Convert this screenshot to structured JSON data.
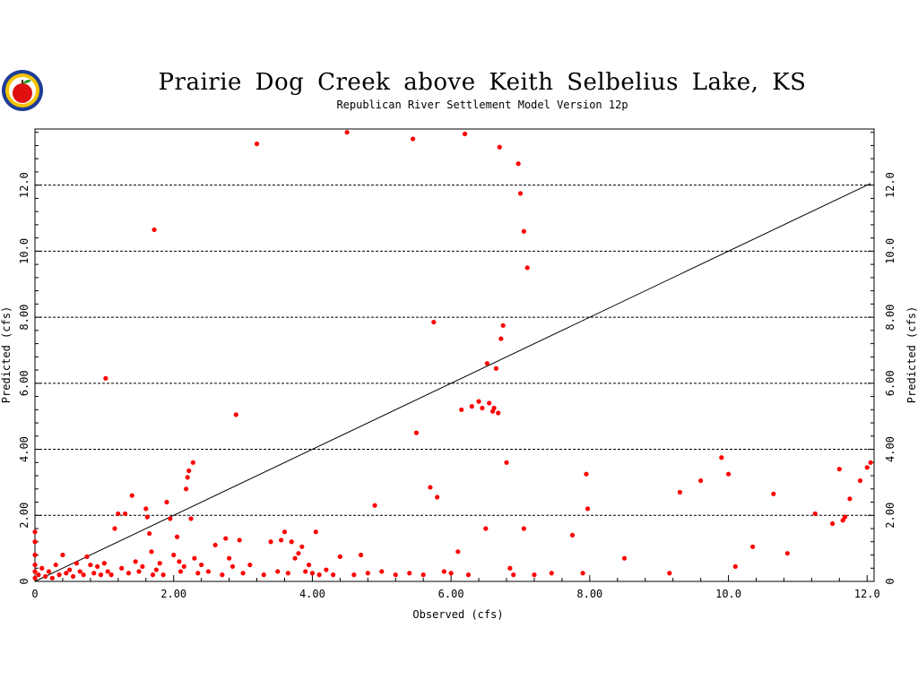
{
  "colors": {
    "points": "#ff0000",
    "line": "#000000",
    "grid": "#000000",
    "background": "#ffffff"
  },
  "logo": {
    "icon": "apple-logo-icon"
  },
  "chart_data": {
    "type": "scatter",
    "title": "Prairie Dog Creek above Keith Selbelius Lake, KS",
    "subtitle": "Republican River Settlement Model Version 12p",
    "xlabel": "Observed (cfs)",
    "ylabel": "Predicted (cfs)",
    "right_ylabel": "Predicted (cfs)",
    "xlim": [
      0,
      12.1
    ],
    "ylim": [
      0,
      13.7
    ],
    "x_ticks": [
      0,
      2,
      4,
      6,
      8,
      10,
      12
    ],
    "x_tick_labels": [
      "0",
      "2.00",
      "4.00",
      "6.00",
      "8.00",
      "10.0",
      "12.0"
    ],
    "y_ticks": [
      0,
      2,
      4,
      6,
      8,
      10,
      12
    ],
    "y_tick_labels": [
      "0",
      "2.00",
      "4.00",
      "6.00",
      "8.00",
      "10.0",
      "12.0"
    ],
    "grid": "horizontal dashed at major y ticks",
    "reference_line": {
      "x": [
        0,
        12.05
      ],
      "y": [
        0,
        12.05
      ]
    },
    "series": [
      {
        "points": [
          [
            0.0,
            1.5
          ],
          [
            0.0,
            1.2
          ],
          [
            0.0,
            0.8
          ],
          [
            0.0,
            0.5
          ],
          [
            0.0,
            0.3
          ],
          [
            0.0,
            0.1
          ],
          [
            0.05,
            0.2
          ],
          [
            0.1,
            0.4
          ],
          [
            0.15,
            0.15
          ],
          [
            0.2,
            0.3
          ],
          [
            0.25,
            0.1
          ],
          [
            0.3,
            0.5
          ],
          [
            0.35,
            0.2
          ],
          [
            0.4,
            0.8
          ],
          [
            0.45,
            0.25
          ],
          [
            0.5,
            0.35
          ],
          [
            0.55,
            0.15
          ],
          [
            0.6,
            0.55
          ],
          [
            0.65,
            0.3
          ],
          [
            0.7,
            0.2
          ],
          [
            0.75,
            0.75
          ],
          [
            0.8,
            0.5
          ],
          [
            0.85,
            0.25
          ],
          [
            0.9,
            0.45
          ],
          [
            0.95,
            0.2
          ],
          [
            1.0,
            0.55
          ],
          [
            1.02,
            6.15
          ],
          [
            1.05,
            0.3
          ],
          [
            1.1,
            0.2
          ],
          [
            1.15,
            1.6
          ],
          [
            1.2,
            2.05
          ],
          [
            1.25,
            0.4
          ],
          [
            1.3,
            2.05
          ],
          [
            1.35,
            0.25
          ],
          [
            1.4,
            2.6
          ],
          [
            1.45,
            0.6
          ],
          [
            1.5,
            0.3
          ],
          [
            1.55,
            0.45
          ],
          [
            1.6,
            2.2
          ],
          [
            1.62,
            1.95
          ],
          [
            1.65,
            1.45
          ],
          [
            1.68,
            0.9
          ],
          [
            1.7,
            0.2
          ],
          [
            1.72,
            10.65
          ],
          [
            1.75,
            0.35
          ],
          [
            1.8,
            0.55
          ],
          [
            1.85,
            0.2
          ],
          [
            1.9,
            2.4
          ],
          [
            1.95,
            1.9
          ],
          [
            2.0,
            0.8
          ],
          [
            2.05,
            1.35
          ],
          [
            2.08,
            0.6
          ],
          [
            2.1,
            0.3
          ],
          [
            2.15,
            0.45
          ],
          [
            2.18,
            2.8
          ],
          [
            2.2,
            3.15
          ],
          [
            2.22,
            3.35
          ],
          [
            2.25,
            1.9
          ],
          [
            2.28,
            3.6
          ],
          [
            2.3,
            0.7
          ],
          [
            2.35,
            0.25
          ],
          [
            2.4,
            0.5
          ],
          [
            2.5,
            0.3
          ],
          [
            2.6,
            1.1
          ],
          [
            2.7,
            0.2
          ],
          [
            2.75,
            1.3
          ],
          [
            2.8,
            0.7
          ],
          [
            2.85,
            0.45
          ],
          [
            2.9,
            5.05
          ],
          [
            2.95,
            1.25
          ],
          [
            3.0,
            0.25
          ],
          [
            3.1,
            0.5
          ],
          [
            3.2,
            13.25
          ],
          [
            3.3,
            0.2
          ],
          [
            3.4,
            1.2
          ],
          [
            3.5,
            0.3
          ],
          [
            3.55,
            1.25
          ],
          [
            3.6,
            1.5
          ],
          [
            3.65,
            0.25
          ],
          [
            3.7,
            1.2
          ],
          [
            3.75,
            0.7
          ],
          [
            3.8,
            0.85
          ],
          [
            3.85,
            1.05
          ],
          [
            3.9,
            0.3
          ],
          [
            3.95,
            0.5
          ],
          [
            4.0,
            0.25
          ],
          [
            4.05,
            1.5
          ],
          [
            4.1,
            0.2
          ],
          [
            4.2,
            0.35
          ],
          [
            4.3,
            0.2
          ],
          [
            4.4,
            0.75
          ],
          [
            4.5,
            13.6
          ],
          [
            4.6,
            0.2
          ],
          [
            4.7,
            0.8
          ],
          [
            4.8,
            0.25
          ],
          [
            4.9,
            2.3
          ],
          [
            5.0,
            0.3
          ],
          [
            5.2,
            0.2
          ],
          [
            5.4,
            0.25
          ],
          [
            5.45,
            13.4
          ],
          [
            5.5,
            4.5
          ],
          [
            5.6,
            0.2
          ],
          [
            5.7,
            2.85
          ],
          [
            5.75,
            7.85
          ],
          [
            5.8,
            2.55
          ],
          [
            5.9,
            0.3
          ],
          [
            6.0,
            0.25
          ],
          [
            6.1,
            0.9
          ],
          [
            6.15,
            5.2
          ],
          [
            6.2,
            13.55
          ],
          [
            6.25,
            0.2
          ],
          [
            6.3,
            5.3
          ],
          [
            6.4,
            5.45
          ],
          [
            6.45,
            5.25
          ],
          [
            6.5,
            1.6
          ],
          [
            6.52,
            6.6
          ],
          [
            6.55,
            5.4
          ],
          [
            6.6,
            5.15
          ],
          [
            6.62,
            5.25
          ],
          [
            6.65,
            6.45
          ],
          [
            6.68,
            5.1
          ],
          [
            6.7,
            13.15
          ],
          [
            6.72,
            7.35
          ],
          [
            6.75,
            7.75
          ],
          [
            6.8,
            3.6
          ],
          [
            6.85,
            0.4
          ],
          [
            6.9,
            0.2
          ],
          [
            6.97,
            12.65
          ],
          [
            7.0,
            11.75
          ],
          [
            7.05,
            10.6
          ],
          [
            7.05,
            1.6
          ],
          [
            7.1,
            9.5
          ],
          [
            7.2,
            0.2
          ],
          [
            7.45,
            0.25
          ],
          [
            7.75,
            1.4
          ],
          [
            7.95,
            3.25
          ],
          [
            7.97,
            2.2
          ],
          [
            7.9,
            0.25
          ],
          [
            8.5,
            0.7
          ],
          [
            9.15,
            0.25
          ],
          [
            9.3,
            2.7
          ],
          [
            9.6,
            3.05
          ],
          [
            9.9,
            3.75
          ],
          [
            10.0,
            3.25
          ],
          [
            10.1,
            0.45
          ],
          [
            10.35,
            1.05
          ],
          [
            10.65,
            2.65
          ],
          [
            10.85,
            0.85
          ],
          [
            11.25,
            2.05
          ],
          [
            11.5,
            1.75
          ],
          [
            11.6,
            3.4
          ],
          [
            11.65,
            1.85
          ],
          [
            11.68,
            1.95
          ],
          [
            11.75,
            2.5
          ],
          [
            11.9,
            3.05
          ],
          [
            12.0,
            3.45
          ],
          [
            12.05,
            3.6
          ]
        ]
      }
    ]
  }
}
